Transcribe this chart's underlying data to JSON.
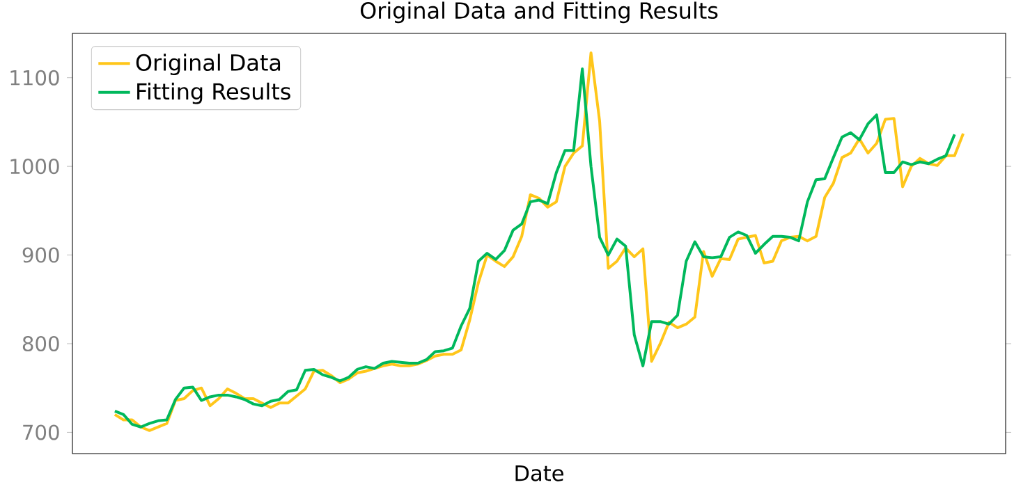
{
  "chart_data": {
    "type": "line",
    "title": "Original Data and Fitting Results",
    "xlabel": "Date",
    "categories": [
      null,
      null,
      null,
      null,
      null,
      null,
      null,
      null,
      null,
      null,
      null,
      null,
      null,
      null,
      null,
      null,
      null,
      null,
      null,
      null,
      null,
      null,
      null,
      null,
      null,
      null,
      null,
      null,
      null,
      null,
      null,
      null,
      null,
      null,
      null,
      null,
      null,
      null,
      null,
      null,
      null,
      null,
      null,
      null,
      null,
      null,
      null,
      null,
      null,
      null,
      null,
      null,
      null,
      null,
      null,
      null,
      null,
      null,
      null,
      null,
      null,
      null,
      null,
      null,
      null,
      null,
      null,
      null,
      null,
      null,
      null,
      null,
      null,
      null,
      null,
      null,
      null,
      null,
      null,
      null,
      null,
      null,
      null,
      null,
      null,
      null,
      null,
      null,
      null,
      null,
      null,
      null,
      null,
      null,
      null,
      null,
      null,
      null,
      null
    ],
    "series": [
      {
        "name": "Original Data",
        "color": "#ffc61a",
        "values": [
          720,
          714,
          714,
          706,
          702,
          706,
          710,
          736,
          738,
          747,
          750,
          730,
          738,
          749,
          744,
          738,
          738,
          733,
          728,
          733,
          733,
          741,
          749,
          769,
          770,
          764,
          756,
          760,
          767,
          769,
          772,
          775,
          777,
          775,
          775,
          777,
          781,
          786,
          788,
          788,
          793,
          827,
          869,
          900,
          893,
          887,
          898,
          921,
          968,
          964,
          954,
          960,
          1000,
          1015,
          1023,
          1128,
          1051,
          885,
          893,
          908,
          898,
          907,
          780,
          800,
          824,
          818,
          822,
          830,
          904,
          876,
          896,
          895,
          918,
          920,
          922,
          891,
          893,
          916,
          920,
          921,
          916,
          921,
          965,
          981,
          1010,
          1015,
          1031,
          1015,
          1026,
          1053,
          1054,
          977,
          1000,
          1009,
          1003,
          1001,
          1012,
          1012,
          1037
        ]
      },
      {
        "name": "Fitting Results",
        "color": "#00b85c",
        "values": [
          724,
          720,
          709,
          706,
          710,
          713,
          714,
          737,
          750,
          751,
          736,
          740,
          742,
          742,
          740,
          737,
          732,
          730,
          735,
          737,
          746,
          748,
          770,
          771,
          765,
          762,
          758,
          762,
          771,
          774,
          772,
          778,
          780,
          779,
          778,
          778,
          782,
          791,
          792,
          795,
          820,
          840,
          893,
          902,
          895,
          905,
          928,
          935,
          960,
          962,
          958,
          993,
          1018,
          1018,
          1110,
          1000,
          920,
          900,
          918,
          910,
          810,
          775,
          825,
          825,
          822,
          832,
          893,
          915,
          898,
          897,
          898,
          920,
          926,
          922,
          902,
          912,
          921,
          921,
          920,
          916,
          960,
          985,
          986,
          1010,
          1033,
          1038,
          1030,
          1048,
          1058,
          993,
          993,
          1005,
          1002,
          1005,
          1003,
          1008,
          1012,
          1036,
          null
        ]
      }
    ],
    "ylim": [
      676,
      1150
    ],
    "yticks": [
      700,
      800,
      900,
      1000,
      1100
    ],
    "grid": false,
    "legend": "top left",
    "marker": "none",
    "line_style": "solid"
  }
}
